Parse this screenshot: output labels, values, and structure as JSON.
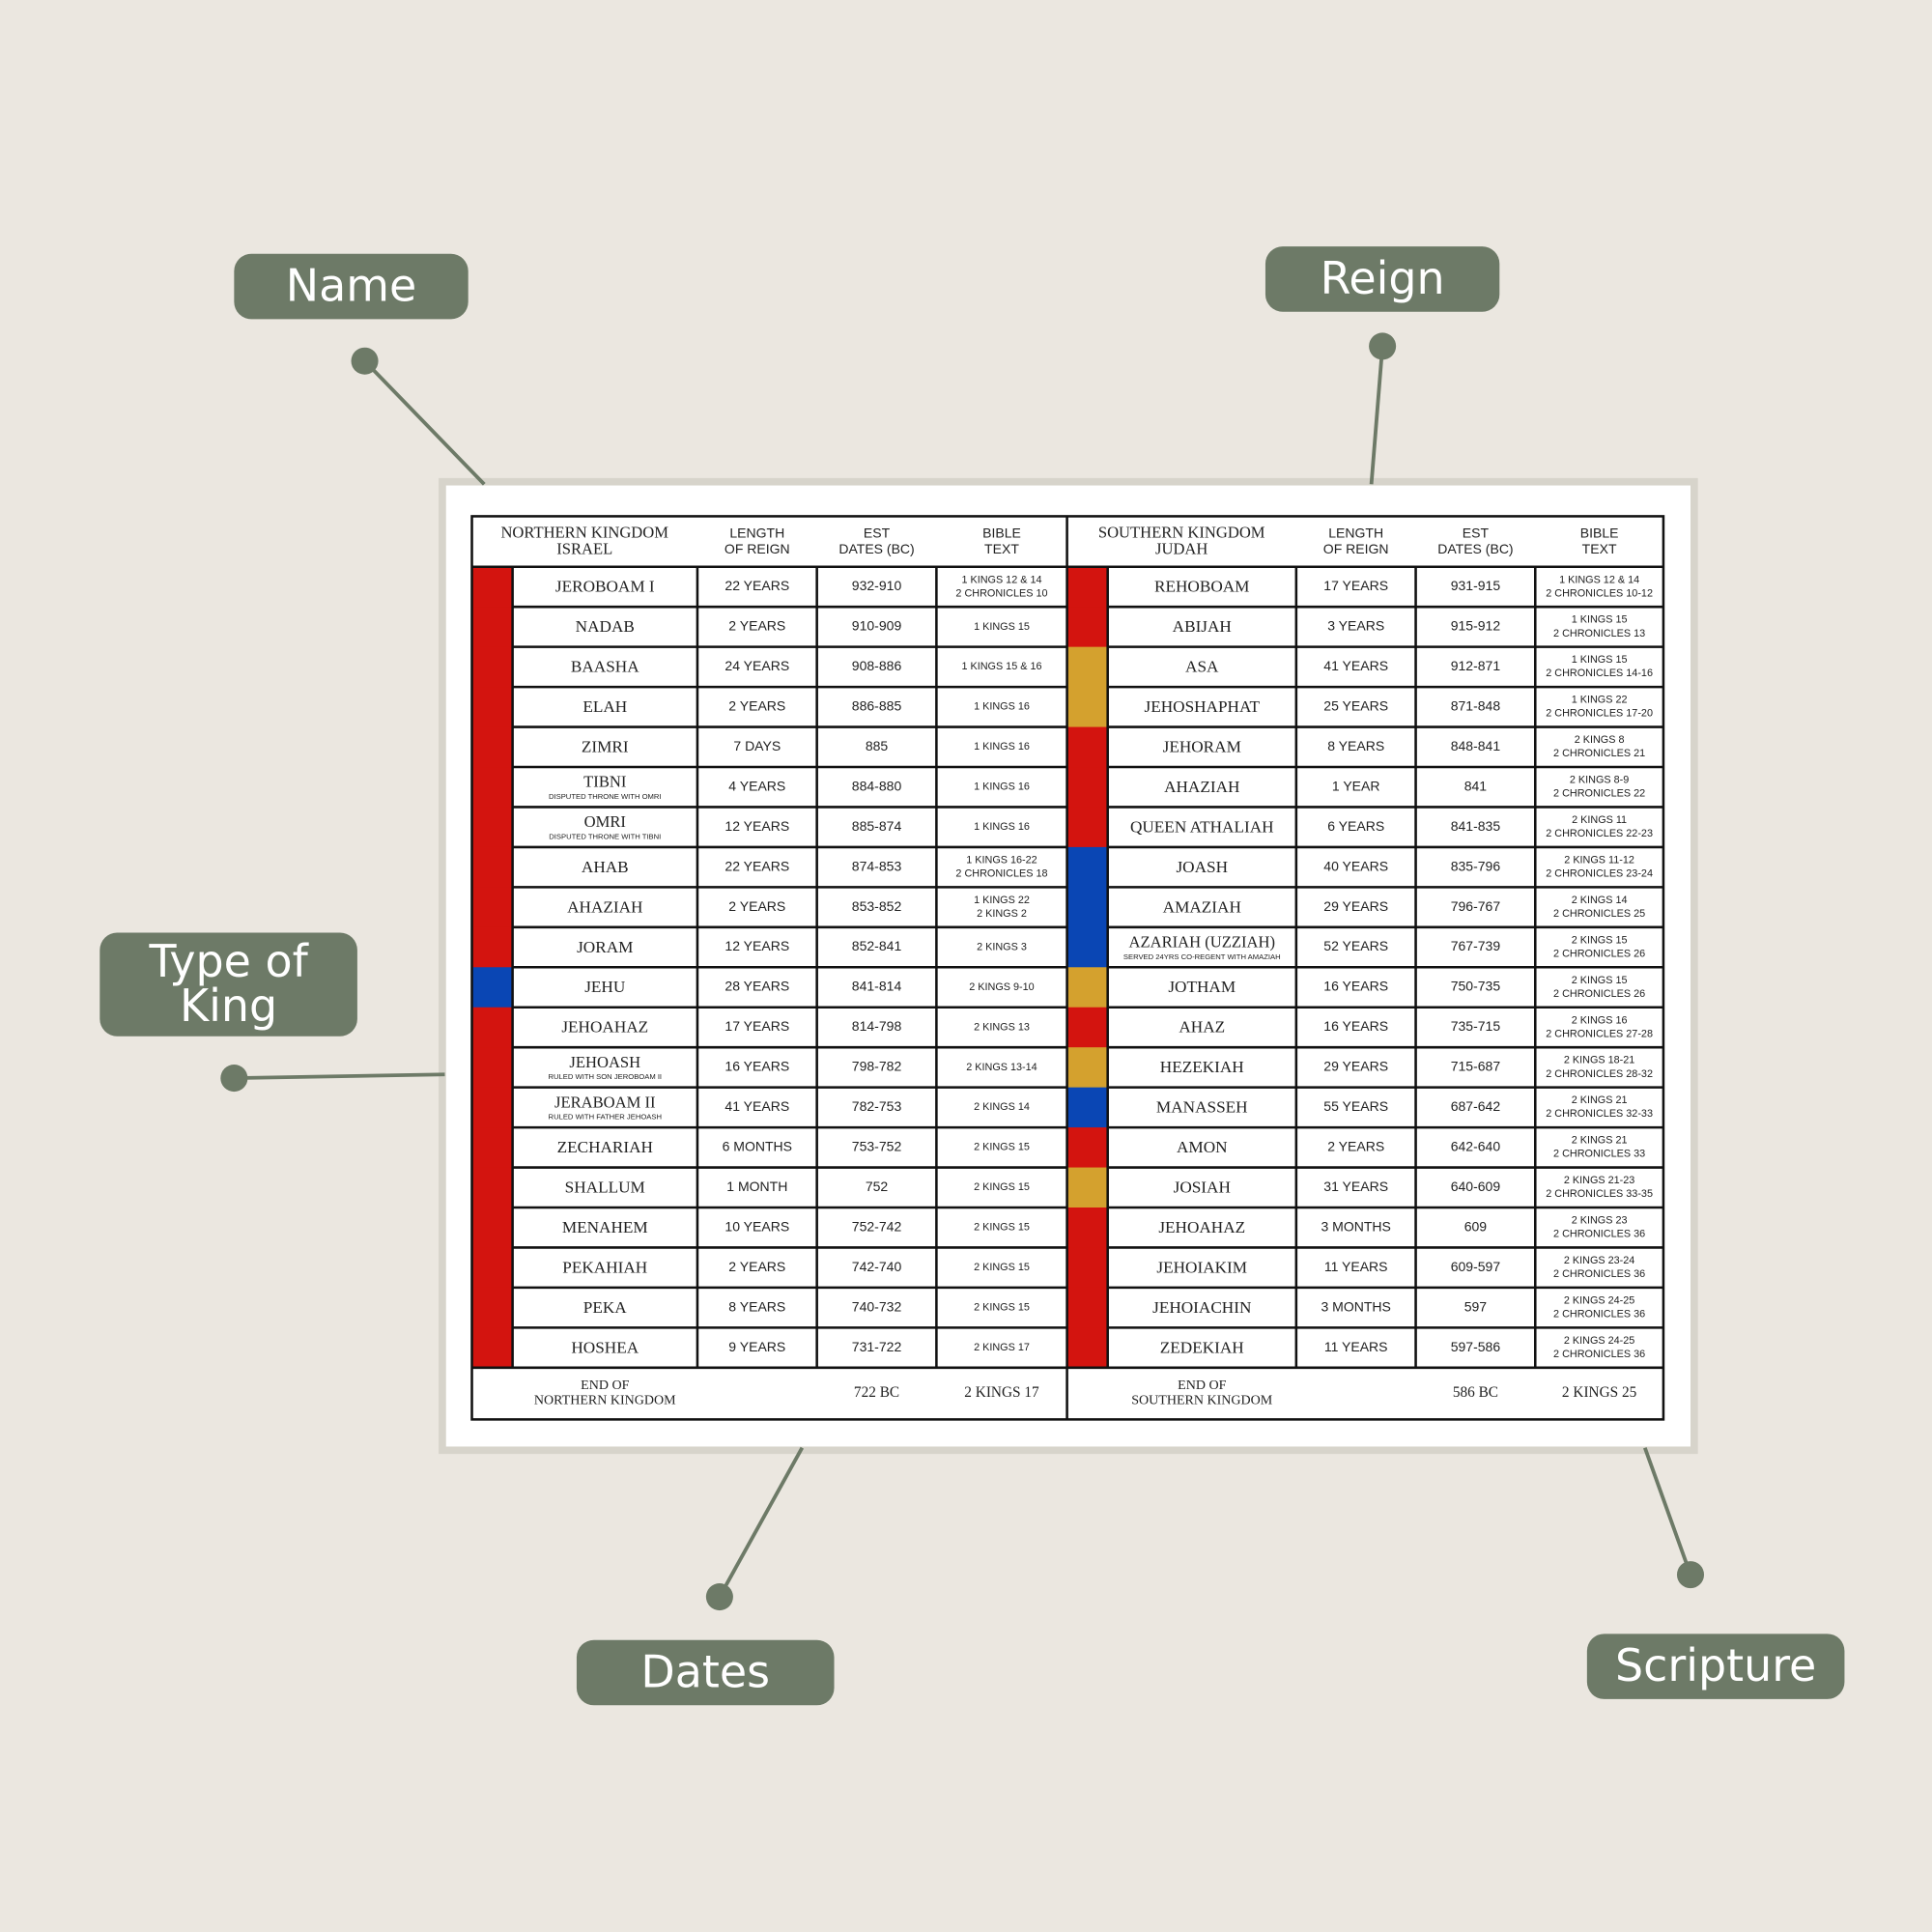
{
  "callouts": [
    {
      "label": [
        "Name"
      ]
    },
    {
      "label": [
        "Reign"
      ]
    },
    {
      "label": [
        "Type of",
        "King"
      ]
    },
    {
      "label": [
        "Dates"
      ]
    },
    {
      "label": [
        "Scripture"
      ]
    }
  ],
  "table": {
    "sections": [
      {
        "header": [
          [
            "NORTHERN KINGDOM",
            "ISRAEL"
          ],
          [
            "LENGTH",
            "OF REIGN"
          ],
          [
            "EST",
            "DATES (BC)"
          ],
          [
            "BIBLE",
            "TEXT"
          ]
        ],
        "rows": [
          {
            "name": "JEROBOAM I",
            "length": "22 YEARS",
            "dates": "932-910",
            "text": [
              "1 KINGS 12 & 14",
              "2 CHRONICLES 10"
            ],
            "color": "#d3140f"
          },
          {
            "name": "NADAB",
            "length": "2 YEARS",
            "dates": "910-909",
            "text": [
              "1 KINGS 15"
            ],
            "color": "#d3140f"
          },
          {
            "name": "BAASHA",
            "length": "24 YEARS",
            "dates": "908-886",
            "text": [
              "1 KINGS 15 & 16"
            ],
            "color": "#d3140f"
          },
          {
            "name": "ELAH",
            "length": "2 YEARS",
            "dates": "886-885",
            "text": [
              "1 KINGS 16"
            ],
            "color": "#d3140f"
          },
          {
            "name": "ZIMRI",
            "length": "7 DAYS",
            "dates": "885",
            "text": [
              "1 KINGS 16"
            ],
            "color": "#d3140f"
          },
          {
            "name": "TIBNI",
            "note": "DISPUTED THRONE WITH OMRI",
            "length": "4 YEARS",
            "dates": "884-880",
            "text": [
              "1 KINGS 16"
            ],
            "color": "#d3140f"
          },
          {
            "name": "OMRI",
            "note": "DISPUTED THRONE WITH TIBNI",
            "length": "12 YEARS",
            "dates": "885-874",
            "text": [
              "1 KINGS 16"
            ],
            "color": "#d3140f"
          },
          {
            "name": "AHAB",
            "length": "22 YEARS",
            "dates": "874-853",
            "text": [
              "1 KINGS 16-22",
              "2 CHRONICLES 18"
            ],
            "color": "#d3140f"
          },
          {
            "name": "AHAZIAH",
            "length": "2 YEARS",
            "dates": "853-852",
            "text": [
              "1 KINGS 22",
              "2 KINGS 2"
            ],
            "color": "#d3140f"
          },
          {
            "name": "JORAM",
            "length": "12 YEARS",
            "dates": "852-841",
            "text": [
              "2 KINGS 3"
            ],
            "color": "#d3140f"
          },
          {
            "name": "JEHU",
            "length": "28 YEARS",
            "dates": "841-814",
            "text": [
              "2 KINGS 9-10"
            ],
            "color": "#0a46b4"
          },
          {
            "name": "JEHOAHAZ",
            "length": "17 YEARS",
            "dates": "814-798",
            "text": [
              "2 KINGS 13"
            ],
            "color": "#d3140f"
          },
          {
            "name": "JEHOASH",
            "note": "RULED WITH SON JEROBOAM II",
            "length": "16 YEARS",
            "dates": "798-782",
            "text": [
              "2 KINGS 13-14"
            ],
            "color": "#d3140f"
          },
          {
            "name": "JERABOAM II",
            "note": "RULED WITH FATHER JEHOASH",
            "length": "41 YEARS",
            "dates": "782-753",
            "text": [
              "2 KINGS 14"
            ],
            "color": "#d3140f"
          },
          {
            "name": "ZECHARIAH",
            "length": "6 MONTHS",
            "dates": "753-752",
            "text": [
              "2 KINGS 15"
            ],
            "color": "#d3140f"
          },
          {
            "name": "SHALLUM",
            "length": "1 MONTH",
            "dates": "752",
            "text": [
              "2 KINGS 15"
            ],
            "color": "#d3140f"
          },
          {
            "name": "MENAHEM",
            "length": "10 YEARS",
            "dates": "752-742",
            "text": [
              "2 KINGS 15"
            ],
            "color": "#d3140f"
          },
          {
            "name": "PEKAHIAH",
            "length": "2 YEARS",
            "dates": "742-740",
            "text": [
              "2 KINGS 15"
            ],
            "color": "#d3140f"
          },
          {
            "name": "PEKA",
            "length": "8 YEARS",
            "dates": "740-732",
            "text": [
              "2 KINGS 15"
            ],
            "color": "#d3140f"
          },
          {
            "name": "HOSHEA",
            "length": "9 YEARS",
            "dates": "731-722",
            "text": [
              "2 KINGS 17"
            ],
            "color": "#d3140f"
          }
        ],
        "footer": {
          "label": [
            "END OF",
            "NORTHERN KINGDOM"
          ],
          "dates": "722 BC",
          "text": "2 KINGS 17"
        }
      },
      {
        "header": [
          [
            "SOUTHERN KINGDOM",
            "JUDAH"
          ],
          [
            "LENGTH",
            "OF REIGN"
          ],
          [
            "EST",
            "DATES (BC)"
          ],
          [
            "BIBLE",
            "TEXT"
          ]
        ],
        "rows": [
          {
            "name": "REHOBOAM",
            "length": "17 YEARS",
            "dates": "931-915",
            "text": [
              "1 KINGS 12 & 14",
              "2 CHRONICLES 10-12"
            ],
            "color": "#d3140f"
          },
          {
            "name": "ABIJAH",
            "length": "3 YEARS",
            "dates": "915-912",
            "text": [
              "1 KINGS 15",
              "2 CHRONICLES 13"
            ],
            "color": "#d3140f"
          },
          {
            "name": "ASA",
            "length": "41 YEARS",
            "dates": "912-871",
            "text": [
              "1 KINGS 15",
              "2 CHRONICLES 14-16"
            ],
            "color": "#d4a12e"
          },
          {
            "name": "JEHOSHAPHAT",
            "length": "25 YEARS",
            "dates": "871-848",
            "text": [
              "1 KINGS 22",
              "2 CHRONICLES 17-20"
            ],
            "color": "#d4a12e"
          },
          {
            "name": "JEHORAM",
            "length": "8 YEARS",
            "dates": "848-841",
            "text": [
              "2 KINGS 8",
              "2 CHRONICLES 21"
            ],
            "color": "#d3140f"
          },
          {
            "name": "AHAZIAH",
            "length": "1 YEAR",
            "dates": "841",
            "text": [
              "2 KINGS 8-9",
              "2 CHRONICLES 22"
            ],
            "color": "#d3140f"
          },
          {
            "name": "QUEEN ATHALIAH",
            "length": "6 YEARS",
            "dates": "841-835",
            "text": [
              "2 KINGS 11",
              "2 CHRONICLES 22-23"
            ],
            "color": "#d3140f"
          },
          {
            "name": "JOASH",
            "length": "40 YEARS",
            "dates": "835-796",
            "text": [
              "2 KINGS 11-12",
              "2 CHRONICLES 23-24"
            ],
            "color": "#0a46b4"
          },
          {
            "name": "AMAZIAH",
            "length": "29 YEARS",
            "dates": "796-767",
            "text": [
              "2 KINGS 14",
              "2 CHRONICLES 25"
            ],
            "color": "#0a46b4"
          },
          {
            "name": "AZARIAH (UZZIAH)",
            "note": "SERVED 24YRS CO-REGENT WITH AMAZIAH",
            "length": "52 YEARS",
            "dates": "767-739",
            "text": [
              "2 KINGS 15",
              "2 CHRONICLES 26"
            ],
            "color": "#0a46b4"
          },
          {
            "name": "JOTHAM",
            "length": "16 YEARS",
            "dates": "750-735",
            "text": [
              "2 KINGS 15",
              "2 CHRONICLES 26"
            ],
            "color": "#d4a12e"
          },
          {
            "name": "AHAZ",
            "length": "16 YEARS",
            "dates": "735-715",
            "text": [
              "2 KINGS 16",
              "2 CHRONICLES 27-28"
            ],
            "color": "#d3140f"
          },
          {
            "name": "HEZEKIAH",
            "length": "29 YEARS",
            "dates": "715-687",
            "text": [
              "2 KINGS 18-21",
              "2 CHRONICLES 28-32"
            ],
            "color": "#d4a12e"
          },
          {
            "name": "MANASSEH",
            "length": "55 YEARS",
            "dates": "687-642",
            "text": [
              "2 KINGS 21",
              "2 CHRONICLES 32-33"
            ],
            "color": "#0a46b4"
          },
          {
            "name": "AMON",
            "length": "2 YEARS",
            "dates": "642-640",
            "text": [
              "2 KINGS 21",
              "2 CHRONICLES 33"
            ],
            "color": "#d3140f"
          },
          {
            "name": "JOSIAH",
            "length": "31 YEARS",
            "dates": "640-609",
            "text": [
              "2 KINGS 21-23",
              "2 CHRONICLES 33-35"
            ],
            "color": "#d4a12e"
          },
          {
            "name": "JEHOAHAZ",
            "length": "3 MONTHS",
            "dates": "609",
            "text": [
              "2 KINGS 23",
              "2 CHRONICLES 36"
            ],
            "color": "#d3140f"
          },
          {
            "name": "JEHOIAKIM",
            "length": "11 YEARS",
            "dates": "609-597",
            "text": [
              "2 KINGS 23-24",
              "2 CHRONICLES 36"
            ],
            "color": "#d3140f"
          },
          {
            "name": "JEHOIACHIN",
            "length": "3 MONTHS",
            "dates": "597",
            "text": [
              "2 KINGS 24-25",
              "2 CHRONICLES 36"
            ],
            "color": "#d3140f"
          },
          {
            "name": "ZEDEKIAH",
            "length": "11 YEARS",
            "dates": "597-586",
            "text": [
              "2 KINGS 24-25",
              "2 CHRONICLES 36"
            ],
            "color": "#d3140f"
          }
        ],
        "footer": {
          "label": [
            "END OF",
            "SOUTHERN KINGDOM"
          ],
          "dates": "586 BC",
          "text": "2 KINGS 25"
        }
      }
    ]
  }
}
